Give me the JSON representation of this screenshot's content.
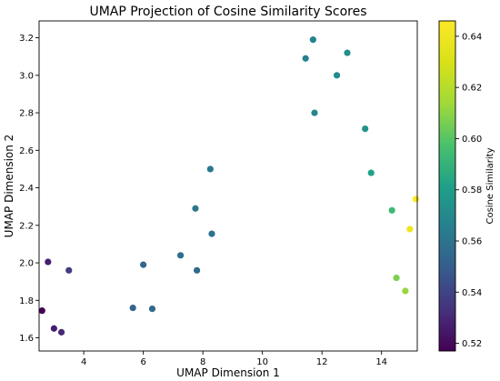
{
  "chart_data": {
    "type": "scatter",
    "title": "UMAP Projection of Cosine Similarity Scores",
    "xlabel": "UMAP Dimension 1",
    "ylabel": "UMAP Dimension 2",
    "xlim": [
      2.5,
      15.2
    ],
    "ylim": [
      1.53,
      3.29
    ],
    "xticks": [
      4,
      6,
      8,
      10,
      12,
      14
    ],
    "yticks": [
      1.6,
      1.8,
      2.0,
      2.2,
      2.4,
      2.6,
      2.8,
      3.0,
      3.2
    ],
    "xtick_labels": [
      "4",
      "6",
      "8",
      "10",
      "12",
      "14"
    ],
    "ytick_labels": [
      "1.6",
      "1.8",
      "2.0",
      "2.2",
      "2.4",
      "2.6",
      "2.8",
      "3.0",
      "3.2"
    ],
    "grid": false,
    "colorbar": {
      "label": "Cosine Similarity",
      "colormap": "viridis",
      "range": [
        0.517,
        0.646
      ],
      "ticks": [
        0.52,
        0.54,
        0.56,
        0.58,
        0.6,
        0.62,
        0.64
      ],
      "tick_labels": [
        "0.52",
        "0.54",
        "0.56",
        "0.58",
        "0.60",
        "0.62",
        "0.64"
      ]
    },
    "points": [
      {
        "x": 2.6,
        "y": 1.745,
        "c": 0.517
      },
      {
        "x": 2.8,
        "y": 2.005,
        "c": 0.527
      },
      {
        "x": 3.0,
        "y": 1.65,
        "c": 0.527
      },
      {
        "x": 3.25,
        "y": 1.63,
        "c": 0.53
      },
      {
        "x": 3.5,
        "y": 1.96,
        "c": 0.537
      },
      {
        "x": 5.65,
        "y": 1.76,
        "c": 0.553
      },
      {
        "x": 6.0,
        "y": 1.99,
        "c": 0.554
      },
      {
        "x": 6.3,
        "y": 1.755,
        "c": 0.556
      },
      {
        "x": 7.25,
        "y": 2.04,
        "c": 0.558
      },
      {
        "x": 7.75,
        "y": 2.29,
        "c": 0.561
      },
      {
        "x": 7.8,
        "y": 1.96,
        "c": 0.556
      },
      {
        "x": 8.25,
        "y": 2.5,
        "c": 0.562
      },
      {
        "x": 8.3,
        "y": 2.155,
        "c": 0.56
      },
      {
        "x": 11.45,
        "y": 3.09,
        "c": 0.566
      },
      {
        "x": 11.7,
        "y": 3.19,
        "c": 0.567
      },
      {
        "x": 11.75,
        "y": 2.8,
        "c": 0.569
      },
      {
        "x": 12.5,
        "y": 3.0,
        "c": 0.571
      },
      {
        "x": 12.85,
        "y": 3.12,
        "c": 0.573
      },
      {
        "x": 13.45,
        "y": 2.715,
        "c": 0.575
      },
      {
        "x": 13.65,
        "y": 2.48,
        "c": 0.582
      },
      {
        "x": 14.35,
        "y": 2.28,
        "c": 0.593
      },
      {
        "x": 14.5,
        "y": 1.92,
        "c": 0.607
      },
      {
        "x": 14.8,
        "y": 1.85,
        "c": 0.612
      },
      {
        "x": 14.95,
        "y": 2.18,
        "c": 0.64
      },
      {
        "x": 15.15,
        "y": 2.34,
        "c": 0.646
      }
    ]
  }
}
